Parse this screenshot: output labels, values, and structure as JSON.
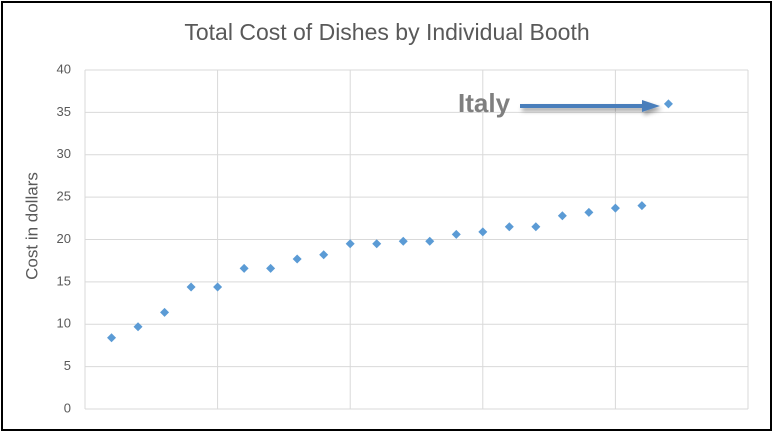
{
  "chart_data": {
    "type": "scatter",
    "title": "Total Cost of Dishes by Individual Booth",
    "y_label": "Cost in dollars",
    "annotation": "Italy",
    "x": [
      1,
      2,
      3,
      4,
      5,
      6,
      7,
      8,
      9,
      10,
      11,
      12,
      13,
      14,
      15,
      16,
      17,
      18,
      19,
      20,
      21,
      22
    ],
    "values": [
      8.4,
      9.7,
      11.4,
      14.4,
      14.4,
      16.6,
      16.6,
      17.7,
      18.2,
      19.5,
      19.5,
      19.8,
      19.8,
      20.6,
      20.9,
      21.5,
      21.5,
      22.8,
      23.2,
      23.7,
      24.0,
      36.0
    ],
    "color": "#5b9bd5",
    "xlim": [
      0,
      25
    ],
    "xticks": [
      0,
      5,
      10,
      15,
      20,
      25
    ],
    "ylim": [
      0,
      40
    ],
    "yticks": [
      0,
      5,
      10,
      15,
      20,
      25,
      30,
      35,
      40
    ],
    "grid": true
  }
}
